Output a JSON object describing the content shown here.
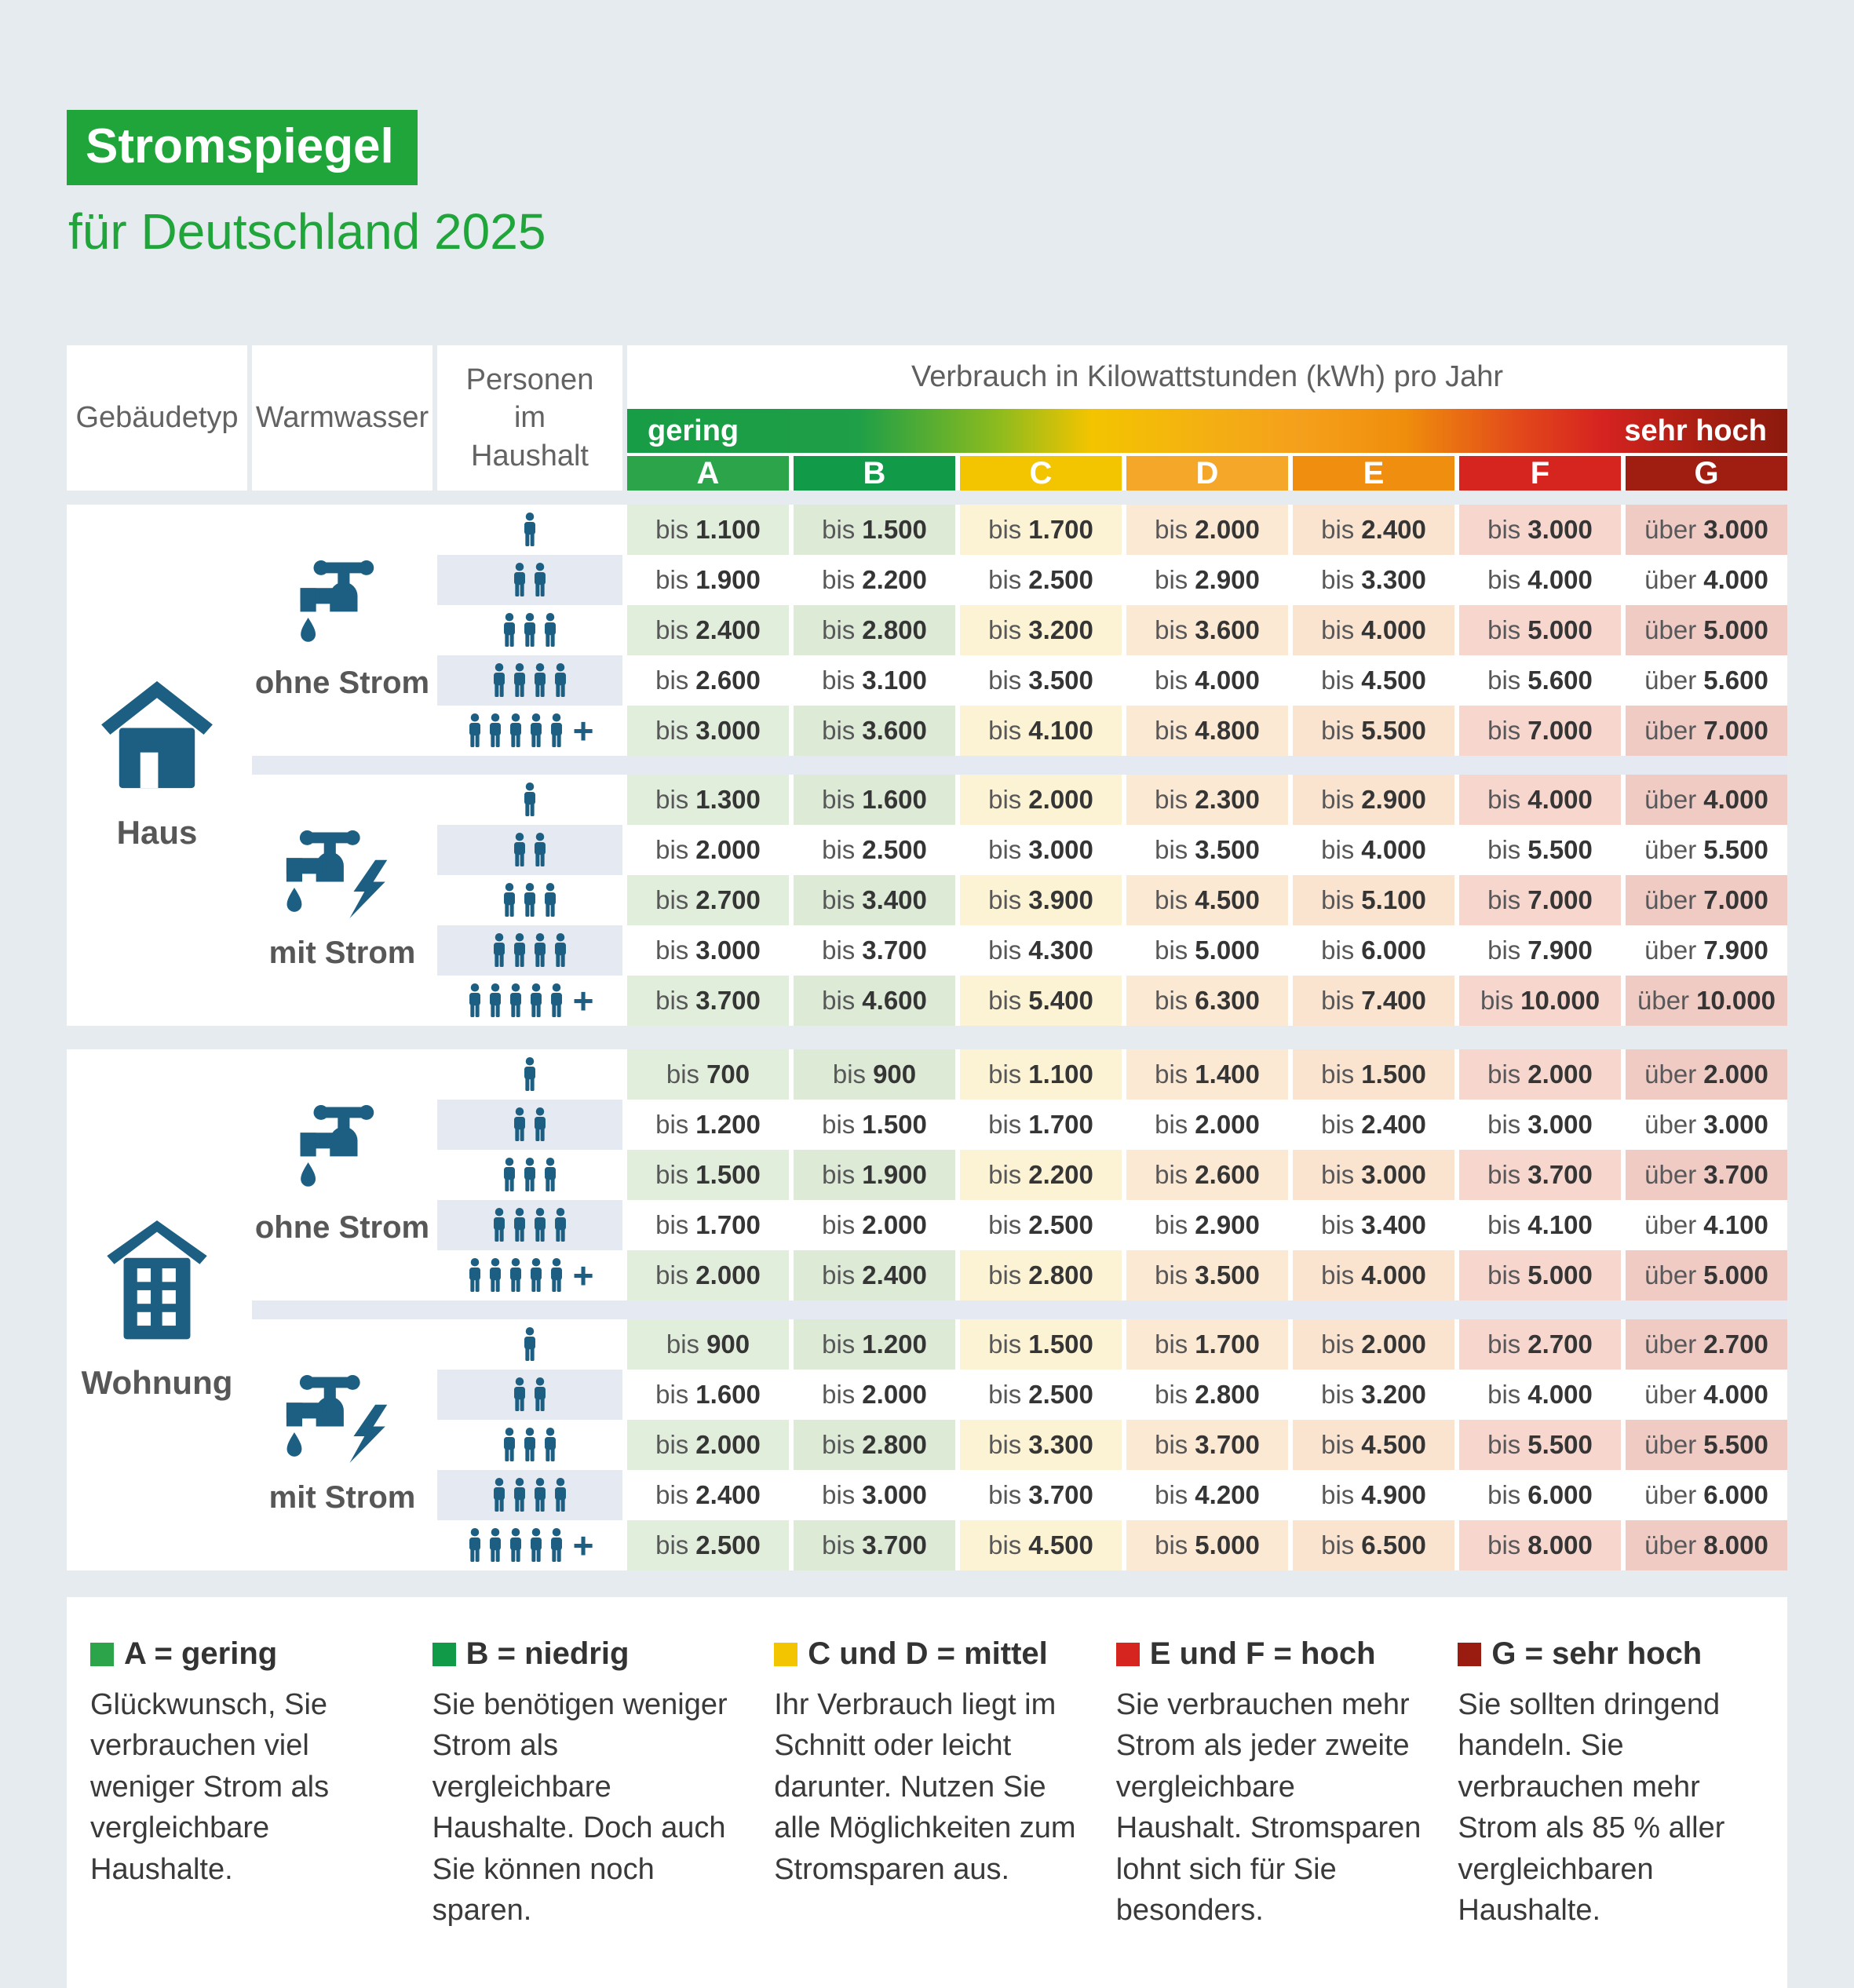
{
  "page_bg": "#E6EBEF",
  "title": {
    "badge": "Stromspiegel",
    "subtitle": "für Deutschland 2025"
  },
  "colors": {
    "brand_green": "#1FA53A",
    "icon_blue": "#1C5F82",
    "row_alt": "#E4E9F2",
    "separator": "#E4E9F2"
  },
  "header": {
    "col1": "Gebäudetyp",
    "col2": "Warmwasser",
    "col3": "Personen im Haushalt",
    "scale_title": "Verbrauch in Kilowattstunden (kWh) pro Jahr",
    "low_label": "gering",
    "high_label": "sehr hoch"
  },
  "classes": [
    {
      "letter": "A",
      "color": "#2CA54A",
      "tint": "#E2EEDC"
    },
    {
      "letter": "B",
      "color": "#119B48",
      "tint": "#DCEAD6"
    },
    {
      "letter": "C",
      "color": "#F3C400",
      "tint": "#FCF3D4"
    },
    {
      "letter": "D",
      "color": "#F5A729",
      "tint": "#FCE9D3"
    },
    {
      "letter": "E",
      "color": "#F08E10",
      "tint": "#FBE4CF"
    },
    {
      "letter": "F",
      "color": "#D6251F",
      "tint": "#F6D6CD"
    },
    {
      "letter": "G",
      "color": "#9F1D11",
      "tint": "#EFCBC3"
    }
  ],
  "chart_data": {
    "type": "table",
    "title": "Stromspiegel für Deutschland 2025",
    "unit": "Verbrauch in Kilowattstunden (kWh) pro Jahr",
    "columns": [
      "A",
      "B",
      "C",
      "D",
      "E",
      "F",
      "G"
    ],
    "sections": [
      {
        "gebaeudetyp": "Haus",
        "icon": "house-icon",
        "groups": [
          {
            "warmwasser": "ohne Strom",
            "icon": "tap-icon",
            "rows": [
              {
                "personen": "1",
                "cells": [
                  [
                    "bis",
                    "1.100"
                  ],
                  [
                    "bis",
                    "1.500"
                  ],
                  [
                    "bis",
                    "1.700"
                  ],
                  [
                    "bis",
                    "2.000"
                  ],
                  [
                    "bis",
                    "2.400"
                  ],
                  [
                    "bis",
                    "3.000"
                  ],
                  [
                    "über",
                    "3.000"
                  ]
                ]
              },
              {
                "personen": "2",
                "cells": [
                  [
                    "bis",
                    "1.900"
                  ],
                  [
                    "bis",
                    "2.200"
                  ],
                  [
                    "bis",
                    "2.500"
                  ],
                  [
                    "bis",
                    "2.900"
                  ],
                  [
                    "bis",
                    "3.300"
                  ],
                  [
                    "bis",
                    "4.000"
                  ],
                  [
                    "über",
                    "4.000"
                  ]
                ]
              },
              {
                "personen": "3",
                "cells": [
                  [
                    "bis",
                    "2.400"
                  ],
                  [
                    "bis",
                    "2.800"
                  ],
                  [
                    "bis",
                    "3.200"
                  ],
                  [
                    "bis",
                    "3.600"
                  ],
                  [
                    "bis",
                    "4.000"
                  ],
                  [
                    "bis",
                    "5.000"
                  ],
                  [
                    "über",
                    "5.000"
                  ]
                ]
              },
              {
                "personen": "4",
                "cells": [
                  [
                    "bis",
                    "2.600"
                  ],
                  [
                    "bis",
                    "3.100"
                  ],
                  [
                    "bis",
                    "3.500"
                  ],
                  [
                    "bis",
                    "4.000"
                  ],
                  [
                    "bis",
                    "4.500"
                  ],
                  [
                    "bis",
                    "5.600"
                  ],
                  [
                    "über",
                    "5.600"
                  ]
                ]
              },
              {
                "personen": "5+",
                "cells": [
                  [
                    "bis",
                    "3.000"
                  ],
                  [
                    "bis",
                    "3.600"
                  ],
                  [
                    "bis",
                    "4.100"
                  ],
                  [
                    "bis",
                    "4.800"
                  ],
                  [
                    "bis",
                    "5.500"
                  ],
                  [
                    "bis",
                    "7.000"
                  ],
                  [
                    "über",
                    "7.000"
                  ]
                ]
              }
            ]
          },
          {
            "warmwasser": "mit Strom",
            "icon": "tap-lightning-icon",
            "rows": [
              {
                "personen": "1",
                "cells": [
                  [
                    "bis",
                    "1.300"
                  ],
                  [
                    "bis",
                    "1.600"
                  ],
                  [
                    "bis",
                    "2.000"
                  ],
                  [
                    "bis",
                    "2.300"
                  ],
                  [
                    "bis",
                    "2.900"
                  ],
                  [
                    "bis",
                    "4.000"
                  ],
                  [
                    "über",
                    "4.000"
                  ]
                ]
              },
              {
                "personen": "2",
                "cells": [
                  [
                    "bis",
                    "2.000"
                  ],
                  [
                    "bis",
                    "2.500"
                  ],
                  [
                    "bis",
                    "3.000"
                  ],
                  [
                    "bis",
                    "3.500"
                  ],
                  [
                    "bis",
                    "4.000"
                  ],
                  [
                    "bis",
                    "5.500"
                  ],
                  [
                    "über",
                    "5.500"
                  ]
                ]
              },
              {
                "personen": "3",
                "cells": [
                  [
                    "bis",
                    "2.700"
                  ],
                  [
                    "bis",
                    "3.400"
                  ],
                  [
                    "bis",
                    "3.900"
                  ],
                  [
                    "bis",
                    "4.500"
                  ],
                  [
                    "bis",
                    "5.100"
                  ],
                  [
                    "bis",
                    "7.000"
                  ],
                  [
                    "über",
                    "7.000"
                  ]
                ]
              },
              {
                "personen": "4",
                "cells": [
                  [
                    "bis",
                    "3.000"
                  ],
                  [
                    "bis",
                    "3.700"
                  ],
                  [
                    "bis",
                    "4.300"
                  ],
                  [
                    "bis",
                    "5.000"
                  ],
                  [
                    "bis",
                    "6.000"
                  ],
                  [
                    "bis",
                    "7.900"
                  ],
                  [
                    "über",
                    "7.900"
                  ]
                ]
              },
              {
                "personen": "5+",
                "cells": [
                  [
                    "bis",
                    "3.700"
                  ],
                  [
                    "bis",
                    "4.600"
                  ],
                  [
                    "bis",
                    "5.400"
                  ],
                  [
                    "bis",
                    "6.300"
                  ],
                  [
                    "bis",
                    "7.400"
                  ],
                  [
                    "bis",
                    "10.000"
                  ],
                  [
                    "über",
                    "10.000"
                  ]
                ]
              }
            ]
          }
        ]
      },
      {
        "gebaeudetyp": "Wohnung",
        "icon": "apartment-building-icon",
        "groups": [
          {
            "warmwasser": "ohne Strom",
            "icon": "tap-icon",
            "rows": [
              {
                "personen": "1",
                "cells": [
                  [
                    "bis",
                    "700"
                  ],
                  [
                    "bis",
                    "900"
                  ],
                  [
                    "bis",
                    "1.100"
                  ],
                  [
                    "bis",
                    "1.400"
                  ],
                  [
                    "bis",
                    "1.500"
                  ],
                  [
                    "bis",
                    "2.000"
                  ],
                  [
                    "über",
                    "2.000"
                  ]
                ]
              },
              {
                "personen": "2",
                "cells": [
                  [
                    "bis",
                    "1.200"
                  ],
                  [
                    "bis",
                    "1.500"
                  ],
                  [
                    "bis",
                    "1.700"
                  ],
                  [
                    "bis",
                    "2.000"
                  ],
                  [
                    "bis",
                    "2.400"
                  ],
                  [
                    "bis",
                    "3.000"
                  ],
                  [
                    "über",
                    "3.000"
                  ]
                ]
              },
              {
                "personen": "3",
                "cells": [
                  [
                    "bis",
                    "1.500"
                  ],
                  [
                    "bis",
                    "1.900"
                  ],
                  [
                    "bis",
                    "2.200"
                  ],
                  [
                    "bis",
                    "2.600"
                  ],
                  [
                    "bis",
                    "3.000"
                  ],
                  [
                    "bis",
                    "3.700"
                  ],
                  [
                    "über",
                    "3.700"
                  ]
                ]
              },
              {
                "personen": "4",
                "cells": [
                  [
                    "bis",
                    "1.700"
                  ],
                  [
                    "bis",
                    "2.000"
                  ],
                  [
                    "bis",
                    "2.500"
                  ],
                  [
                    "bis",
                    "2.900"
                  ],
                  [
                    "bis",
                    "3.400"
                  ],
                  [
                    "bis",
                    "4.100"
                  ],
                  [
                    "über",
                    "4.100"
                  ]
                ]
              },
              {
                "personen": "5+",
                "cells": [
                  [
                    "bis",
                    "2.000"
                  ],
                  [
                    "bis",
                    "2.400"
                  ],
                  [
                    "bis",
                    "2.800"
                  ],
                  [
                    "bis",
                    "3.500"
                  ],
                  [
                    "bis",
                    "4.000"
                  ],
                  [
                    "bis",
                    "5.000"
                  ],
                  [
                    "über",
                    "5.000"
                  ]
                ]
              }
            ]
          },
          {
            "warmwasser": "mit Strom",
            "icon": "tap-lightning-icon",
            "rows": [
              {
                "personen": "1",
                "cells": [
                  [
                    "bis",
                    "900"
                  ],
                  [
                    "bis",
                    "1.200"
                  ],
                  [
                    "bis",
                    "1.500"
                  ],
                  [
                    "bis",
                    "1.700"
                  ],
                  [
                    "bis",
                    "2.000"
                  ],
                  [
                    "bis",
                    "2.700"
                  ],
                  [
                    "über",
                    "2.700"
                  ]
                ]
              },
              {
                "personen": "2",
                "cells": [
                  [
                    "bis",
                    "1.600"
                  ],
                  [
                    "bis",
                    "2.000"
                  ],
                  [
                    "bis",
                    "2.500"
                  ],
                  [
                    "bis",
                    "2.800"
                  ],
                  [
                    "bis",
                    "3.200"
                  ],
                  [
                    "bis",
                    "4.000"
                  ],
                  [
                    "über",
                    "4.000"
                  ]
                ]
              },
              {
                "personen": "3",
                "cells": [
                  [
                    "bis",
                    "2.000"
                  ],
                  [
                    "bis",
                    "2.800"
                  ],
                  [
                    "bis",
                    "3.300"
                  ],
                  [
                    "bis",
                    "3.700"
                  ],
                  [
                    "bis",
                    "4.500"
                  ],
                  [
                    "bis",
                    "5.500"
                  ],
                  [
                    "über",
                    "5.500"
                  ]
                ]
              },
              {
                "personen": "4",
                "cells": [
                  [
                    "bis",
                    "2.400"
                  ],
                  [
                    "bis",
                    "3.000"
                  ],
                  [
                    "bis",
                    "3.700"
                  ],
                  [
                    "bis",
                    "4.200"
                  ],
                  [
                    "bis",
                    "4.900"
                  ],
                  [
                    "bis",
                    "6.000"
                  ],
                  [
                    "über",
                    "6.000"
                  ]
                ]
              },
              {
                "personen": "5+",
                "cells": [
                  [
                    "bis",
                    "2.500"
                  ],
                  [
                    "bis",
                    "3.700"
                  ],
                  [
                    "bis",
                    "4.500"
                  ],
                  [
                    "bis",
                    "5.000"
                  ],
                  [
                    "bis",
                    "6.500"
                  ],
                  [
                    "bis",
                    "8.000"
                  ],
                  [
                    "über",
                    "8.000"
                  ]
                ]
              }
            ]
          }
        ]
      }
    ]
  },
  "legend": [
    {
      "square": "#2CA54A",
      "title": "A = gering",
      "text": "Glückwunsch, Sie verbrauchen viel weniger Strom als vergleichbare Haushalte."
    },
    {
      "square": "#119B48",
      "title": "B = niedrig",
      "text": "Sie benötigen weniger Strom als vergleichbare Haushalte. Doch auch Sie können noch sparen."
    },
    {
      "square": "#F3C400",
      "title": "C und D = mittel",
      "text": "Ihr Verbrauch liegt im Schnitt oder leicht darunter. Nutzen Sie alle Möglichkeiten zum Stromsparen aus."
    },
    {
      "square": "#D6251F",
      "title": "E und F = hoch",
      "text": "Sie verbrauchen mehr Strom als jeder zweite vergleichbare Haushalt. Stromsparen lohnt sich für Sie besonders."
    },
    {
      "square": "#9A1B10",
      "title": "G = sehr hoch",
      "text": "Sie sollten dringend handeln. Sie verbrauchen mehr Strom als 85 % aller vergleichbaren Haushalte."
    }
  ]
}
